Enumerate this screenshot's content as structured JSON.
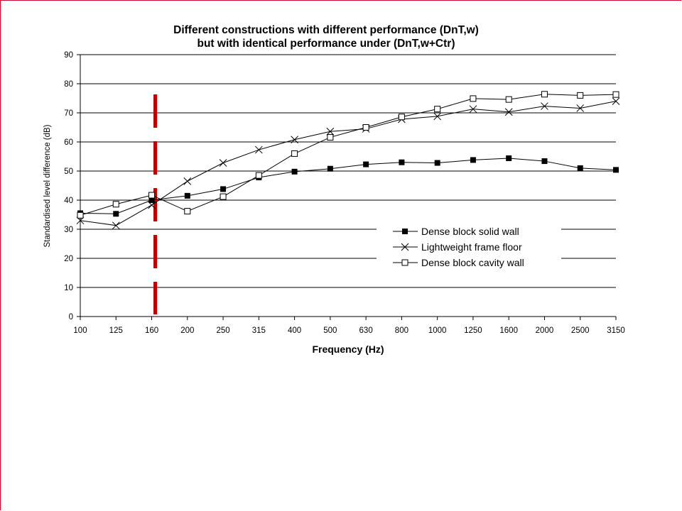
{
  "chart_data": {
    "type": "line",
    "title": "Different constructions with different performance (DnT,w)",
    "subtitle": "but with identical performance under (DnT,w+Ctr)",
    "xlabel": "Frequency (Hz)",
    "ylabel": "Standardised level difference (dB)",
    "ylim": [
      0,
      90
    ],
    "yticks": [
      "0",
      "10",
      "20",
      "30",
      "40",
      "50",
      "60",
      "70",
      "80",
      "90"
    ],
    "categories": [
      "100",
      "125",
      "160",
      "200",
      "250",
      "315",
      "400",
      "500",
      "630",
      "800",
      "1000",
      "1250",
      "1600",
      "2000",
      "2500",
      "3150"
    ],
    "grid": "horizontal",
    "legend_position": "right-inside",
    "series": [
      {
        "name": "Dense block solid wall",
        "marker": "filled-square",
        "values": [
          35.5,
          35.3,
          40.0,
          41.5,
          43.8,
          47.8,
          49.8,
          50.8,
          52.3,
          53.0,
          52.8,
          53.8,
          54.4,
          53.4,
          51.0,
          50.4
        ]
      },
      {
        "name": "Lightweight frame floor",
        "marker": "cross",
        "values": [
          33.0,
          31.3,
          38.3,
          46.5,
          52.8,
          57.3,
          60.8,
          63.6,
          64.5,
          67.8,
          68.8,
          71.3,
          70.3,
          72.3,
          71.6,
          74.0
        ]
      },
      {
        "name": "Dense block cavity wall",
        "marker": "open-square",
        "values": [
          34.8,
          38.6,
          41.7,
          36.2,
          41.2,
          48.5,
          56.0,
          61.6,
          65.0,
          68.6,
          71.3,
          74.9,
          74.6,
          76.4,
          76.0,
          76.3
        ]
      }
    ],
    "annotation": {
      "type": "vertical-dashed-line",
      "x_category": "160",
      "color": "#c00000"
    }
  }
}
